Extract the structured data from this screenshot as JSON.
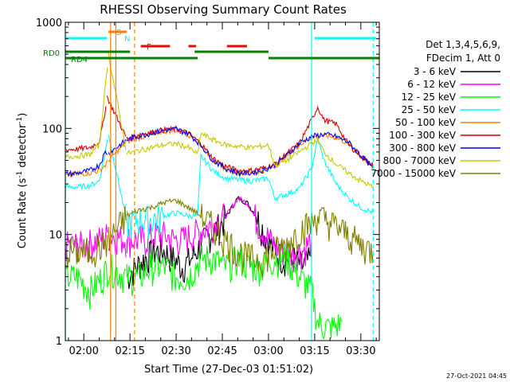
{
  "chart_data": {
    "type": "line",
    "title": "RHESSI Observing Summary Count Rates",
    "xlabel": "Start Time (27-Dec-03 01:51:02)",
    "ylabel": "Count Rate (s",
    "ylabel_sup": "-1",
    "ylabel_tail": " detector",
    "ylabel_close": ")",
    "yscale": "log",
    "ylim": [
      1,
      1000
    ],
    "xlim_minutes": [
      -6,
      96
    ],
    "x_ticks": [
      {
        "m": 0,
        "label": "02:00"
      },
      {
        "m": 15,
        "label": "02:15"
      },
      {
        "m": 30,
        "label": "02:30"
      },
      {
        "m": 45,
        "label": "02:45"
      },
      {
        "m": 60,
        "label": "03:00"
      },
      {
        "m": 75,
        "label": "03:15"
      },
      {
        "m": 90,
        "label": "03:30"
      }
    ],
    "y_ticks": [
      {
        "v": 1,
        "label": "1"
      },
      {
        "v": 10,
        "label": "10"
      },
      {
        "v": 100,
        "label": "100"
      },
      {
        "v": 1000,
        "label": "1000"
      }
    ],
    "legend_header": [
      "Det 1,3,4,5,6,9,",
      "FDecim 1, Att 0"
    ],
    "series": [
      {
        "name": "3 - 6 keV",
        "color": "#000000",
        "x": [
          14,
          17,
          20,
          23,
          26,
          29,
          32,
          35,
          38,
          41,
          44,
          47,
          50,
          53,
          56,
          59,
          62,
          65,
          68,
          71,
          74
        ],
        "y": [
          4,
          5,
          6,
          7,
          7,
          6,
          5,
          6,
          8,
          10,
          12,
          16,
          22,
          20,
          15,
          10,
          7,
          6,
          6,
          5,
          6
        ]
      },
      {
        "name": "6 - 12 keV",
        "color": "#ff00ff",
        "x": [
          -6,
          0,
          5,
          8,
          14,
          17,
          20,
          23,
          26,
          29,
          32,
          35,
          38,
          41,
          44,
          47,
          50,
          53,
          56,
          59,
          62,
          65,
          68,
          71,
          74
        ],
        "y": [
          8,
          8,
          9,
          10,
          9,
          9,
          9,
          10,
          10,
          9,
          9,
          10,
          11,
          12,
          14,
          16,
          22,
          20,
          14,
          10,
          8,
          7,
          7,
          7,
          9
        ]
      },
      {
        "name": "12 - 25 keV",
        "color": "#00ff00",
        "x": [
          -6,
          -2,
          2,
          6,
          8,
          14,
          18,
          22,
          26,
          30,
          34,
          38,
          42,
          46,
          50,
          54,
          58,
          62,
          66,
          70,
          74,
          76,
          80,
          84
        ],
        "y": [
          4,
          4,
          3,
          4,
          5,
          4,
          4,
          5,
          5,
          4,
          4,
          6,
          6,
          5,
          6,
          5,
          5,
          6,
          6,
          4,
          3,
          1.5,
          1.3,
          1.5
        ]
      },
      {
        "name": "25 - 50 keV",
        "color": "#00ffff",
        "x": [
          -6,
          -2,
          2,
          5,
          7,
          8,
          14,
          18,
          22,
          26,
          30,
          34,
          37,
          38,
          42,
          46,
          50,
          54,
          58,
          60,
          62,
          66,
          70,
          74,
          76,
          78,
          82,
          86,
          90,
          94
        ],
        "y": [
          28,
          28,
          29,
          32,
          60,
          90,
          13,
          14,
          14,
          15,
          16,
          15,
          15,
          55,
          40,
          34,
          33,
          32,
          33,
          34,
          22,
          24,
          27,
          42,
          80,
          50,
          30,
          22,
          18,
          16
        ]
      },
      {
        "name": "50 - 100 keV",
        "color": "#ff7f00",
        "x": [
          -6,
          -2,
          2,
          5,
          7,
          8,
          14,
          18,
          22,
          26,
          30,
          34,
          38,
          42,
          46,
          50,
          54,
          58,
          62,
          66,
          70,
          74,
          78,
          82,
          86,
          90,
          94
        ],
        "y": [
          36,
          37,
          38,
          40,
          45,
          50,
          75,
          82,
          88,
          94,
          96,
          88,
          70,
          50,
          42,
          38,
          38,
          40,
          44,
          55,
          70,
          82,
          86,
          82,
          72,
          55,
          42
        ]
      },
      {
        "name": "100 - 300 keV",
        "color": "#d40000",
        "x": [
          -6,
          -2,
          2,
          5,
          6.5,
          7.5,
          14,
          18,
          22,
          26,
          30,
          34,
          38,
          42,
          46,
          50,
          54,
          58,
          62,
          66,
          70,
          74,
          76,
          78,
          82,
          86,
          90,
          94
        ],
        "y": [
          63,
          64,
          66,
          75,
          120,
          200,
          80,
          88,
          92,
          97,
          99,
          90,
          72,
          52,
          44,
          40,
          40,
          42,
          46,
          58,
          72,
          120,
          160,
          120,
          110,
          70,
          55,
          45
        ]
      },
      {
        "name": "300 - 800 keV",
        "color": "#0000ff",
        "x": [
          -6,
          -2,
          2,
          5,
          7,
          8,
          14,
          18,
          22,
          26,
          30,
          34,
          38,
          42,
          46,
          50,
          54,
          58,
          62,
          66,
          70,
          74,
          78,
          82,
          86,
          90,
          94
        ],
        "y": [
          37,
          38,
          40,
          45,
          60,
          58,
          78,
          85,
          90,
          96,
          98,
          90,
          70,
          50,
          42,
          38,
          38,
          40,
          45,
          56,
          72,
          84,
          88,
          84,
          74,
          56,
          42
        ]
      },
      {
        "name": "800 - 7000 keV",
        "color": "#c8c800",
        "x": [
          -6,
          -2,
          2,
          5,
          7,
          8,
          14,
          18,
          22,
          26,
          30,
          34,
          37,
          38,
          42,
          46,
          50,
          54,
          58,
          60,
          62,
          66,
          70,
          74,
          76,
          78,
          82,
          86,
          90,
          94
        ],
        "y": [
          54,
          55,
          57,
          70,
          250,
          500,
          58,
          62,
          66,
          70,
          72,
          66,
          57,
          90,
          78,
          70,
          68,
          66,
          68,
          70,
          45,
          50,
          60,
          72,
          78,
          60,
          46,
          38,
          32,
          28
        ]
      },
      {
        "name": "7000 - 15000 keV",
        "color": "#808000",
        "x": [
          -6,
          -2,
          2,
          6,
          8,
          14,
          18,
          22,
          26,
          30,
          34,
          38,
          42,
          46,
          50,
          54,
          58,
          62,
          66,
          70,
          74,
          76,
          78,
          82,
          86,
          90,
          94
        ],
        "y": [
          7,
          7,
          7,
          8,
          9,
          15,
          17,
          18,
          20,
          21,
          18,
          15,
          12,
          9,
          7,
          6,
          6,
          7,
          8,
          11,
          13,
          15,
          14,
          12,
          10,
          8,
          7
        ]
      }
    ],
    "top_bars": {
      "ATT": {
        "color": "#00ffff",
        "segments": [
          [
            -6,
            7.5
          ],
          [
            75,
            95
          ]
        ]
      },
      "SAA": {
        "label": "S",
        "color": "#ff7f00",
        "segments": [
          [
            8,
            14
          ]
        ]
      },
      "NIGHT": {
        "label": "N",
        "color": "#00ffff",
        "segments": []
      },
      "FLARE": {
        "label": "F",
        "color": "#ff0000",
        "segments": [
          [
            18.5,
            28
          ],
          [
            34,
            36.5
          ],
          [
            46.5,
            53
          ]
        ]
      },
      "RD0": {
        "label": "RD0",
        "color": "#008000",
        "segments": [
          [
            -6,
            15
          ],
          [
            36,
            46
          ],
          [
            46,
            60
          ]
        ]
      },
      "RD4": {
        "label": "RD4",
        "color": "#008000",
        "segments": [
          [
            -6,
            15
          ],
          [
            15,
            37
          ],
          [
            60,
            96
          ]
        ]
      }
    },
    "vertical_lines": [
      {
        "m": -6,
        "color": "#00ffff",
        "dash": false
      },
      {
        "m": 8.7,
        "color": "#ff7f00",
        "dash": false
      },
      {
        "m": 10.4,
        "color": "#ff7f00",
        "dash": false
      },
      {
        "m": 16.5,
        "color": "#ff7f00",
        "dash": true
      },
      {
        "m": 74.0,
        "color": "#00ffff",
        "dash": false
      },
      {
        "m": 94.0,
        "color": "#00ffff",
        "dash": true
      }
    ]
  },
  "footer_stamp": "27-Oct-2021 04:45"
}
